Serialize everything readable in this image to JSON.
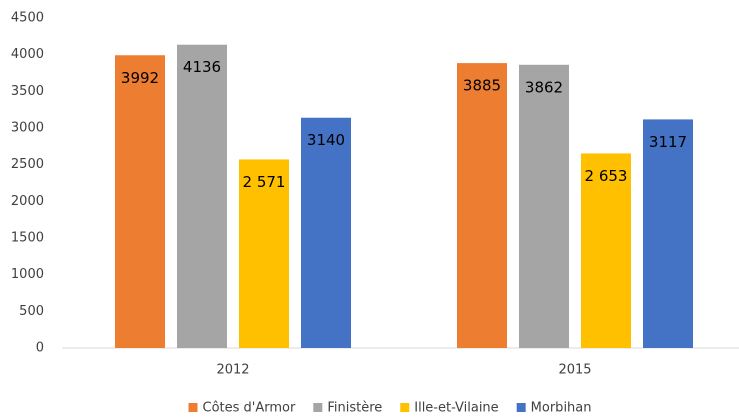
{
  "chart_data": {
    "type": "bar",
    "categories": [
      "2012",
      "2015"
    ],
    "series": [
      {
        "name": "Côtes d'Armor",
        "color": "#ED7D31",
        "values": [
          3992,
          3885
        ],
        "value_labels": [
          "3992",
          "3885"
        ]
      },
      {
        "name": "Finistère",
        "color": "#A5A5A5",
        "values": [
          4136,
          3862
        ],
        "value_labels": [
          "4136",
          "3862"
        ]
      },
      {
        "name": "Ille-et-Vilaine",
        "color": "#FFC000",
        "values": [
          2571,
          2653
        ],
        "value_labels": [
          "2 571",
          "2 653"
        ]
      },
      {
        "name": "Morbihan",
        "color": "#4472C4",
        "values": [
          3140,
          3117
        ],
        "value_labels": [
          "3140",
          "3117"
        ]
      }
    ],
    "ylim": [
      0,
      4500
    ],
    "yticks": [
      0,
      500,
      1000,
      1500,
      2000,
      2500,
      3000,
      3500,
      4000,
      4500
    ],
    "grid": false,
    "legend": "bottom"
  }
}
